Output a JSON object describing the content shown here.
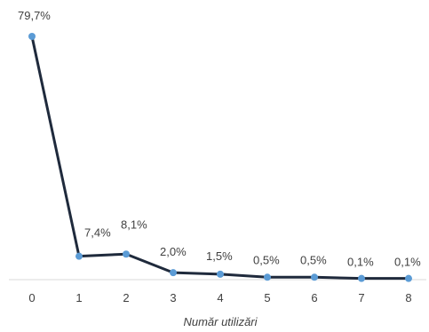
{
  "chart_data": {
    "type": "line",
    "title": "",
    "xlabel": "Număr utilizări",
    "ylabel": "",
    "x": [
      "0",
      "1",
      "2",
      "3",
      "4",
      "5",
      "6",
      "7",
      "8"
    ],
    "series": [
      {
        "values": [
          79.7,
          7.4,
          8.1,
          2.0,
          1.5,
          0.5,
          0.5,
          0.1,
          0.1
        ],
        "labels": [
          "79,7%",
          "7,4%",
          "8,1%",
          "2,0%",
          "1,5%",
          "0,5%",
          "0,5%",
          "0,1%",
          "0,1%"
        ]
      }
    ],
    "ylim": [
      0,
      80
    ],
    "grid": false,
    "legend": "none",
    "colors": {
      "line": "#1f2a3c",
      "marker": "#5b9bd5",
      "axis": "#d9d9d9",
      "text": "#404040"
    }
  }
}
